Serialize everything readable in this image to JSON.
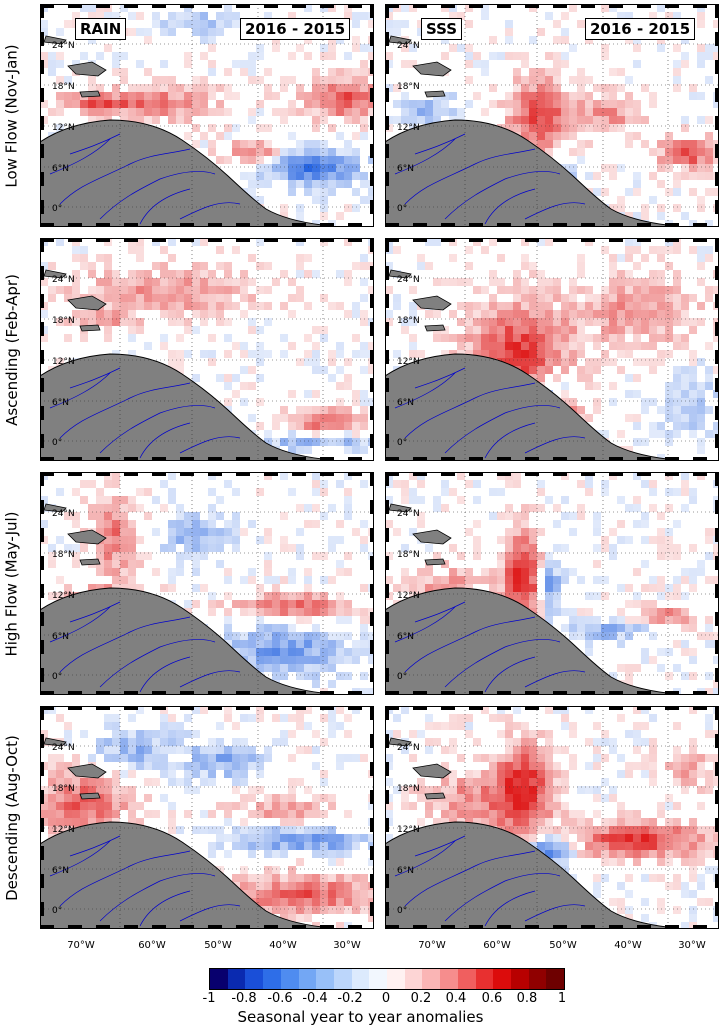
{
  "columns": [
    {
      "variable": "RAIN",
      "period": "2016 - 2015"
    },
    {
      "variable": "SSS",
      "period": "2016 - 2015"
    }
  ],
  "rows": [
    {
      "label": "Low Flow (Nov-Jan)"
    },
    {
      "label": "Ascending (Feb-Apr)"
    },
    {
      "label": "High Flow (May-Jul)"
    },
    {
      "label": "Descending (Aug-Oct)"
    }
  ],
  "lat_labels": [
    "24°N",
    "18°N",
    "12°N",
    "6°N",
    "0°"
  ],
  "lon_labels": [
    "70°W",
    "60°W",
    "50°W",
    "40°W",
    "30°W"
  ],
  "colorbar": {
    "ticks": [
      "-1",
      "-0.8",
      "-0.6",
      "-0.4",
      "-0.2",
      "0",
      "0.2",
      "0.4",
      "0.6",
      "0.8",
      "1"
    ],
    "title": "Seasonal year to year anomalies",
    "colors": [
      "#08006e",
      "#0a2ab0",
      "#1a4fd8",
      "#2e6ee8",
      "#4f8cf0",
      "#73a7f4",
      "#98c0f8",
      "#bcd6fb",
      "#dceafd",
      "#f2f7fe",
      "#fff1f1",
      "#fdd5d5",
      "#fab5b5",
      "#f68d8d",
      "#f05f5f",
      "#e83030",
      "#dc0c0c",
      "#b80000",
      "#900000",
      "#6e0000"
    ]
  },
  "map_colors": {
    "land": "#808080",
    "rivers": "#0000cc",
    "positive": "#dd1111",
    "negative": "#1155dd"
  }
}
